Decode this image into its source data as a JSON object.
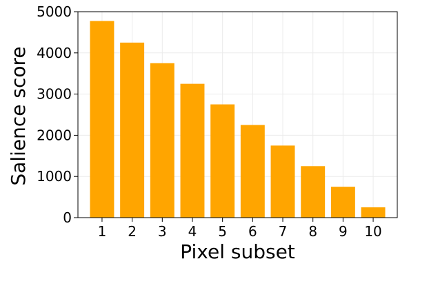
{
  "chart_data": {
    "type": "bar",
    "categories": [
      "1",
      "2",
      "3",
      "4",
      "5",
      "6",
      "7",
      "8",
      "9",
      "10"
    ],
    "values": [
      4775,
      4250,
      3750,
      3250,
      2750,
      2250,
      1750,
      1250,
      750,
      250
    ],
    "xlabel": "Pixel subset",
    "ylabel": "Salience score",
    "ylim": [
      0,
      5000
    ],
    "yticks": [
      "0",
      "1000",
      "2000",
      "3000",
      "4000",
      "5000"
    ],
    "grid": true,
    "bar_color": "#FFA500",
    "grid_color": "#EBEBEB",
    "axis_color": "#000000"
  }
}
